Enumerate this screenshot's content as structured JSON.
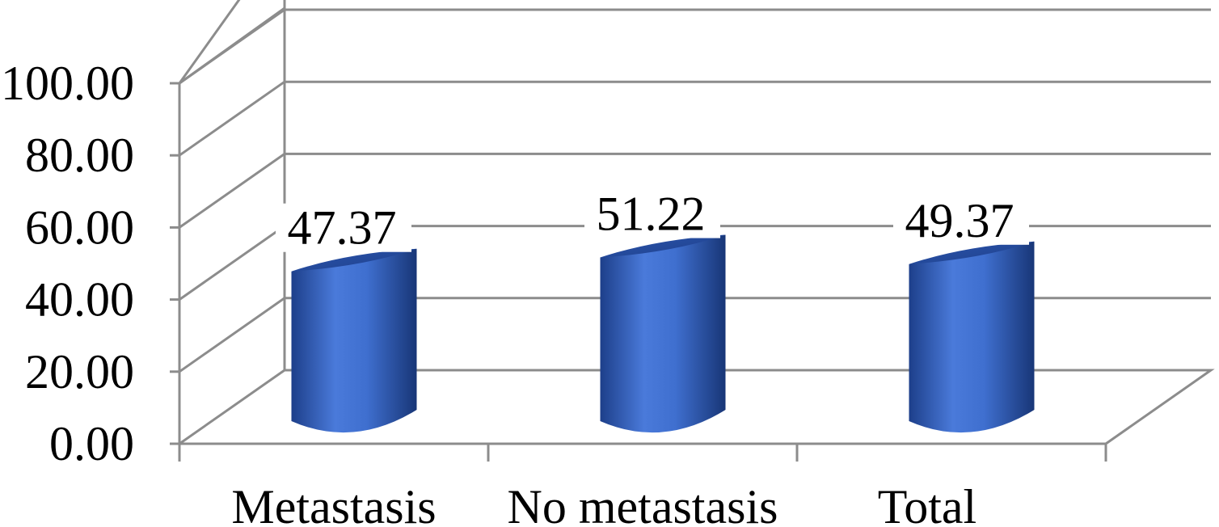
{
  "chart_data": {
    "type": "bar",
    "style": "3d-cylinder",
    "categories": [
      "Metastasis",
      "No metastasis",
      "Total"
    ],
    "values": [
      47.37,
      51.22,
      49.37
    ],
    "value_labels": [
      "47.37",
      "51.22",
      "49.37"
    ],
    "yticks": [
      "0.00",
      "20.00",
      "40.00",
      "60.00",
      "80.00",
      "100.00"
    ],
    "ylim": [
      0,
      100
    ],
    "grid": true,
    "legend": "none",
    "colors": {
      "bar": "#3f6fcf",
      "bar_dark": "#1d3f8a",
      "bar_light": "#5b8be6",
      "grid": "#8c8c8c"
    }
  }
}
